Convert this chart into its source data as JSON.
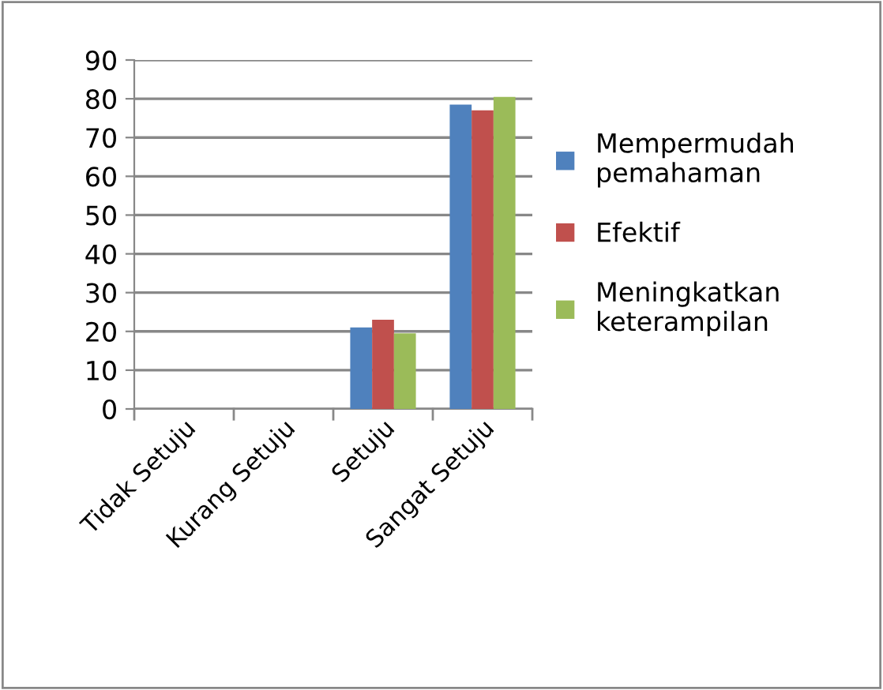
{
  "chart_data": {
    "type": "bar",
    "categories": [
      "Tidak Setuju",
      "Kurang Setuju",
      "Setuju",
      "Sangat Setuju"
    ],
    "series": [
      {
        "name": "Mempermudah\npemahaman",
        "color": "#4f81bd",
        "values": [
          0,
          0,
          21,
          78.5
        ]
      },
      {
        "name": "Efektif",
        "color": "#c0504d",
        "values": [
          0,
          0,
          23,
          77
        ]
      },
      {
        "name": "Meningkatkan\nketerampilan",
        "color": "#9bbb59",
        "values": [
          0,
          0,
          19.5,
          80.5
        ]
      }
    ],
    "ylim": [
      0,
      90
    ],
    "yticks": [
      0,
      10,
      20,
      30,
      40,
      50,
      60,
      70,
      80,
      90
    ],
    "grid": "y",
    "legend": "right"
  }
}
